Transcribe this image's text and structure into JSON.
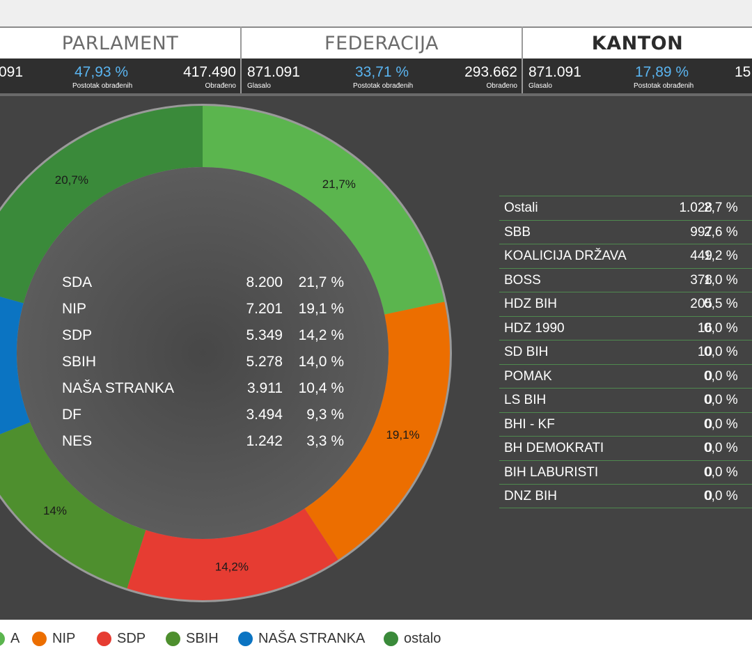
{
  "tabs": [
    {
      "label": "PARLAMENT",
      "active": false
    },
    {
      "label": "FEDERACIJA",
      "active": false
    },
    {
      "label": "KANTON",
      "active": true
    }
  ],
  "stats": [
    {
      "voters": "091",
      "voters_caption": "",
      "percent": "47,93 %",
      "percent_caption": "Postotak obrađenih",
      "processed": "417.490",
      "processed_caption": "Obrađeno"
    },
    {
      "voters": "871.091",
      "voters_caption": "Glasalo",
      "percent": "33,71 %",
      "percent_caption": "Postotak obrađenih",
      "processed": "293.662",
      "processed_caption": "Obrađeno"
    },
    {
      "voters": "871.091",
      "voters_caption": "Glasalo",
      "percent": "17,89 %",
      "percent_caption": "Postotak obrađenih",
      "processed": "15",
      "processed_caption": ""
    }
  ],
  "colors": {
    "sda_light_green": "#5bb54e",
    "nip_orange": "#ec6e00",
    "sdp_red": "#e63c32",
    "sbih_green": "#4e8f2e",
    "nasa_stranka_blue": "#0b74c2",
    "ostalo_dark_green": "#3a8a3a"
  },
  "chart_data": {
    "type": "pie",
    "style": "donut",
    "slices": [
      {
        "party": "SDA",
        "value": 21.7,
        "label": "21,7%",
        "color": "#5bb54e"
      },
      {
        "party": "NIP",
        "value": 19.1,
        "label": "19,1%",
        "color": "#ec6e00"
      },
      {
        "party": "SDP",
        "value": 14.2,
        "label": "14,2%",
        "color": "#e63c32"
      },
      {
        "party": "SBIH",
        "value": 14.0,
        "label": "14%",
        "color": "#4e8f2e"
      },
      {
        "party": "NAŠA STRANKA",
        "value": 10.4,
        "label": "%",
        "color": "#0b74c2"
      },
      {
        "party": "ostalo",
        "value": 20.7,
        "label": "20,7%",
        "color": "#3a8a3a"
      }
    ],
    "center_results": [
      {
        "party": "SDA",
        "votes": "8.200",
        "percent": "21,7 %"
      },
      {
        "party": "NIP",
        "votes": "7.201",
        "percent": "19,1 %"
      },
      {
        "party": "SDP",
        "votes": "5.349",
        "percent": "14,2 %"
      },
      {
        "party": "SBIH",
        "votes": "5.278",
        "percent": "14,0 %"
      },
      {
        "party": "NAŠA STRANKA",
        "votes": "3.911",
        "percent": "10,4 %"
      },
      {
        "party": "DF",
        "votes": "3.494",
        "percent": "9,3 %"
      },
      {
        "party": "NES",
        "votes": "1.242",
        "percent": "3,3 %"
      }
    ],
    "other_results": [
      {
        "party": "Ostali",
        "votes": "1.028",
        "percent": "2,7 %"
      },
      {
        "party": "SBB",
        "votes": "997",
        "percent": "2,6 %"
      },
      {
        "party": "KOALICIJA DRŽAVA",
        "votes": "449",
        "percent": "1,2 %"
      },
      {
        "party": "BOSS",
        "votes": "378",
        "percent": "1,0 %"
      },
      {
        "party": "HDZ BIH",
        "votes": "205",
        "percent": "0,5 %"
      },
      {
        "party": "HDZ 1990",
        "votes": "16",
        "percent": "0,0 %"
      },
      {
        "party": "SD BIH",
        "votes": "10",
        "percent": "0,0 %"
      },
      {
        "party": "POMAK",
        "votes": "0",
        "percent": "0,0 %"
      },
      {
        "party": "LS BIH",
        "votes": "0",
        "percent": "0,0 %"
      },
      {
        "party": "BHI - KF",
        "votes": "0",
        "percent": "0,0 %"
      },
      {
        "party": "BH DEMOKRATI",
        "votes": "0",
        "percent": "0,0 %"
      },
      {
        "party": "BIH LABURISTI",
        "votes": "0",
        "percent": "0,0 %"
      },
      {
        "party": "DNZ BIH",
        "votes": "0",
        "percent": "0,0 %"
      }
    ],
    "legend": [
      {
        "label": "A",
        "color": "#5bb54e"
      },
      {
        "label": "NIP",
        "color": "#ec6e00"
      },
      {
        "label": "SDP",
        "color": "#e63c32"
      },
      {
        "label": "SBIH",
        "color": "#4e8f2e"
      },
      {
        "label": "NAŠA STRANKA",
        "color": "#0b74c2"
      },
      {
        "label": "ostalo",
        "color": "#3a8a3a"
      }
    ]
  }
}
